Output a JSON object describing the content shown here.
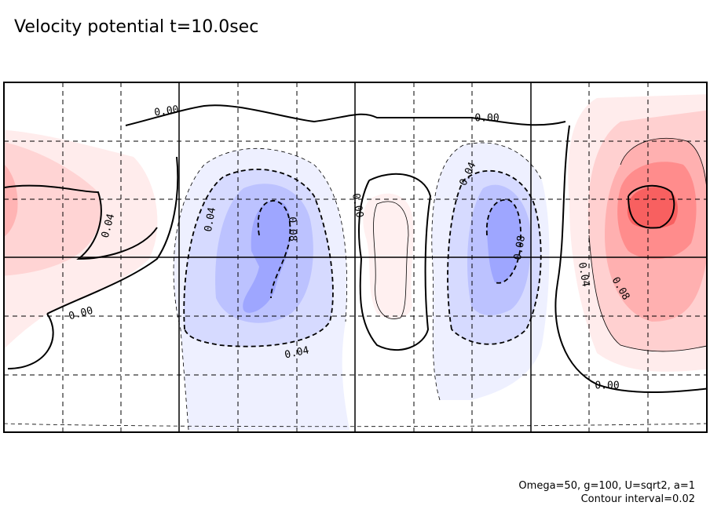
{
  "chart_data": {
    "type": "contour",
    "title": "Velocity potential t=10.0sec",
    "contour_labels": [
      "0.00",
      "0.00",
      "0.00",
      "0.00",
      "0.04",
      "0.04",
      "0.08",
      "0.04",
      "0.00",
      "0.04",
      "0.08",
      "0.04",
      "0.08"
    ],
    "footnotes": [
      "Omega=50, g=100, U=sqrt2, a=1",
      "Contour interval=0.02"
    ]
  }
}
